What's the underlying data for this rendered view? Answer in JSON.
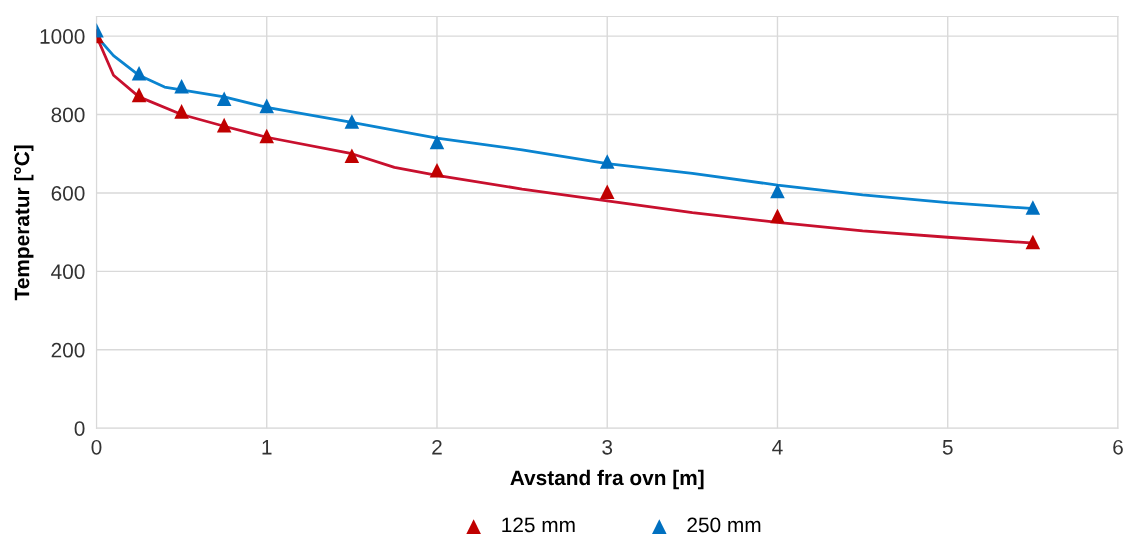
{
  "chart_data": {
    "type": "scatter",
    "xlabel": "Avstand fra ovn [m]",
    "ylabel": "Temperatur [°C]",
    "xlim": [
      0,
      6
    ],
    "xticks": [
      0,
      1,
      2,
      3,
      4,
      5,
      6
    ],
    "ylim": [
      0,
      1050
    ],
    "yticks": [
      0,
      200,
      400,
      600,
      800,
      1000
    ],
    "grid": true,
    "legend": "bottom",
    "marker": "triangle",
    "series": [
      {
        "name": "125 mm",
        "color": "#c00000",
        "x": [
          0,
          0.25,
          0.5,
          0.75,
          1,
          1.5,
          2,
          3,
          4,
          5.5
        ],
        "values": [
          1000,
          850,
          808,
          773,
          745,
          695,
          658,
          603,
          541,
          475
        ]
      },
      {
        "name": "250 mm",
        "color": "#0070c0",
        "x": [
          0,
          0.25,
          0.5,
          0.75,
          1,
          1.5,
          2,
          3,
          4,
          5.5
        ],
        "values": [
          1015,
          905,
          872,
          840,
          822,
          782,
          730,
          680,
          605,
          563
        ]
      },
      {
        "type": "line",
        "marker": "none",
        "color": "#c8102e",
        "x": [
          0,
          0.1,
          0.25,
          0.5,
          0.75,
          1,
          1.5,
          1.75,
          2,
          2.5,
          3,
          3.5,
          4,
          4.5,
          5,
          5.5
        ],
        "values": [
          1000,
          900,
          845,
          800,
          770,
          742,
          700,
          665,
          645,
          610,
          580,
          550,
          525,
          503,
          487,
          472
        ]
      },
      {
        "type": "line",
        "marker": "none",
        "color": "#0a84d0",
        "x": [
          0,
          0.1,
          0.25,
          0.4,
          0.75,
          1,
          1.5,
          2,
          2.5,
          3,
          3.5,
          4,
          4.5,
          5,
          5.5
        ],
        "values": [
          1000,
          950,
          900,
          870,
          845,
          818,
          780,
          740,
          710,
          675,
          650,
          620,
          595,
          575,
          560
        ]
      }
    ]
  }
}
